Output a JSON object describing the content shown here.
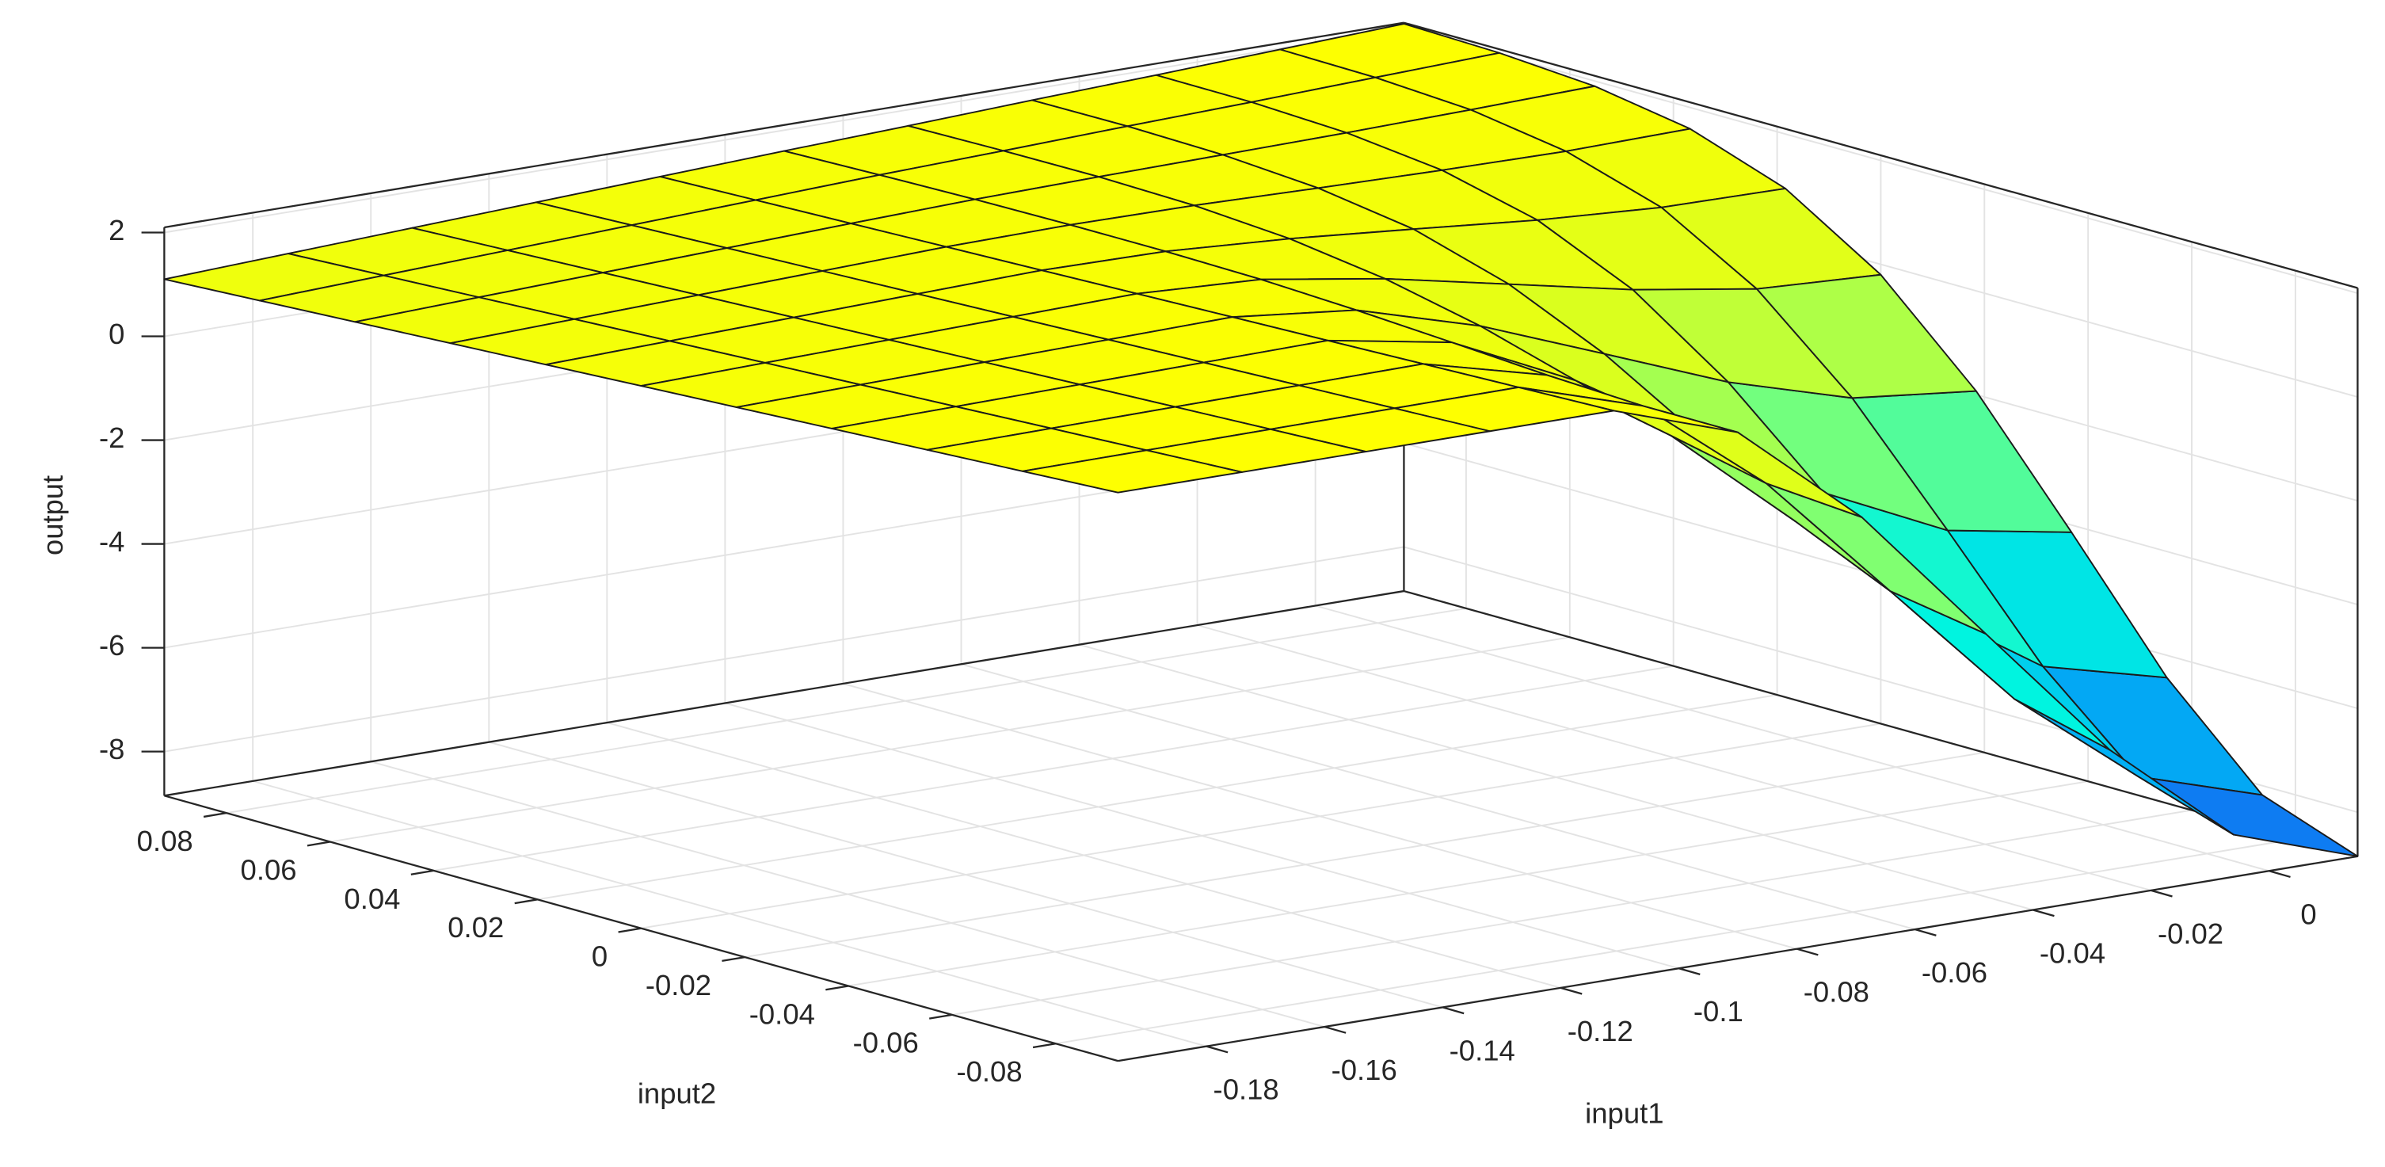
{
  "chart_data": {
    "type": "surface",
    "xlabel": "input1",
    "ylabel": "input2",
    "zlabel": "output",
    "x": [
      -0.195,
      -0.174,
      -0.153,
      -0.132,
      -0.111,
      -0.09,
      -0.069,
      -0.048,
      -0.027,
      -0.006,
      0.015
    ],
    "y": [
      -0.092,
      -0.0736,
      -0.0552,
      -0.0368,
      -0.0184,
      0,
      0.0184,
      0.0368,
      0.0552,
      0.0736,
      0.092
    ],
    "z": [
      [
        2.1,
        2.1,
        2.1,
        2.1,
        2.1,
        1.29,
        -0.74,
        -3.38,
        -6.01,
        -8.04,
        -8.85
      ],
      [
        2.0,
        2.01,
        2.02,
        2.03,
        2.04,
        1.29,
        -0.6,
        -3.07,
        -5.54,
        -7.43,
        -8.18
      ],
      [
        1.9,
        1.92,
        1.94,
        1.96,
        1.98,
        1.37,
        -0.19,
        -2.23,
        -4.26,
        -5.82,
        -6.43
      ],
      [
        1.8,
        1.83,
        1.86,
        1.89,
        1.92,
        1.49,
        0.36,
        -1.11,
        -2.59,
        -3.71,
        -4.14
      ],
      [
        1.7,
        1.74,
        1.78,
        1.82,
        1.86,
        1.6,
        0.9,
        -0.03,
        -0.97,
        -1.67,
        -1.93
      ],
      [
        1.6,
        1.65,
        1.7,
        1.75,
        1.8,
        1.68,
        1.3,
        0.8,
        0.3,
        -0.08,
        -0.2
      ],
      [
        1.5,
        1.56,
        1.62,
        1.68,
        1.74,
        1.71,
        1.56,
        1.35,
        1.13,
        0.98,
        0.95
      ],
      [
        1.4,
        1.47,
        1.54,
        1.61,
        1.68,
        1.71,
        1.69,
        1.63,
        1.58,
        1.55,
        1.59
      ],
      [
        1.3,
        1.38,
        1.46,
        1.54,
        1.62,
        1.69,
        1.73,
        1.76,
        1.79,
        1.84,
        1.9
      ],
      [
        1.2,
        1.29,
        1.38,
        1.47,
        1.56,
        1.65,
        1.72,
        1.8,
        1.87,
        1.95,
        2.03
      ],
      [
        1.1,
        1.2,
        1.3,
        1.4,
        1.5,
        1.6,
        1.69,
        1.79,
        1.88,
        1.98,
        2.08
      ]
    ],
    "xlim": [
      -0.195,
      0.015
    ],
    "ylim": [
      -0.092,
      0.092
    ],
    "zlim": [
      -8.85,
      2.1
    ],
    "xticks": [
      -0.18,
      -0.16,
      -0.14,
      -0.12,
      -0.1,
      -0.08,
      -0.06,
      -0.04,
      -0.02,
      0
    ],
    "yticks": [
      -0.08,
      -0.06,
      -0.04,
      -0.02,
      0,
      0.02,
      0.04,
      0.06,
      0.08
    ],
    "zticks": [
      -8,
      -6,
      -4,
      -2,
      0,
      2
    ],
    "colormap": [
      "#1560f0",
      "#00b4f5",
      "#00f5e0",
      "#70ff80",
      "#d8ff20",
      "#ffff00"
    ],
    "grid": true
  }
}
